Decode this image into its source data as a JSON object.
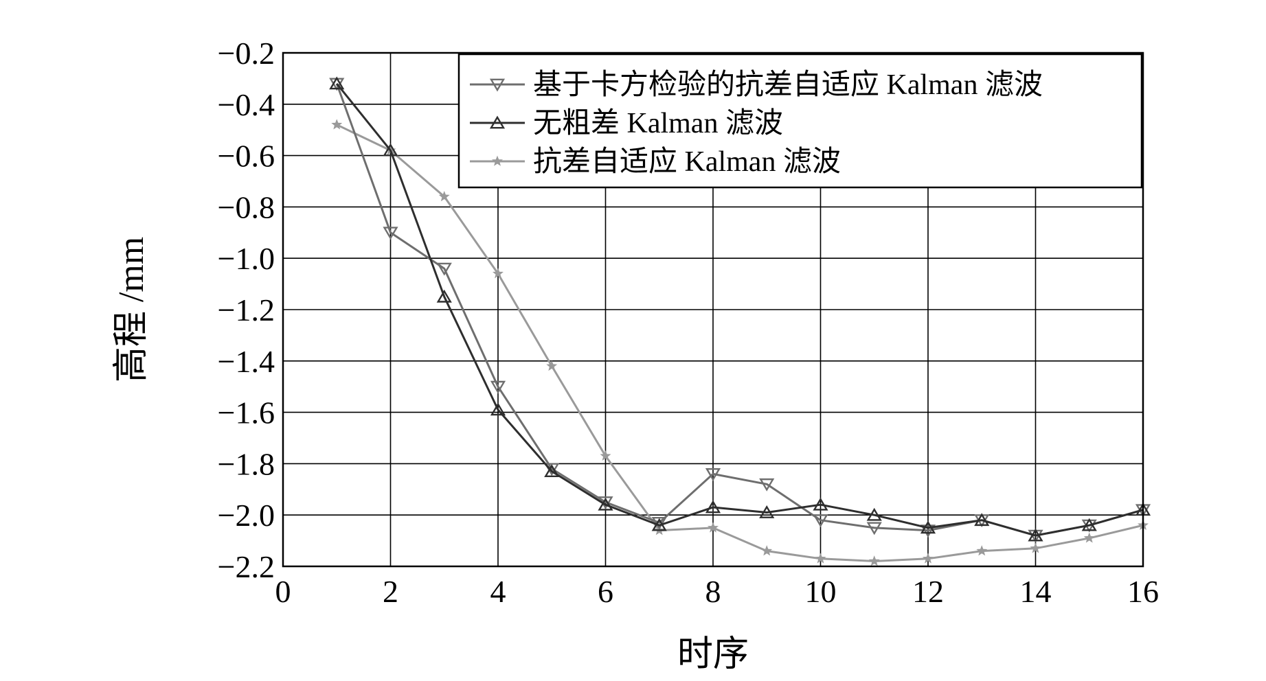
{
  "chart_data": {
    "type": "line",
    "xlabel": "时序",
    "ylabel": "高程 /mm",
    "xlim": [
      0,
      16
    ],
    "ylim": [
      -2.2,
      -0.2
    ],
    "xticks": [
      0,
      2,
      4,
      6,
      8,
      10,
      12,
      14,
      16
    ],
    "yticks": [
      -0.2,
      -0.4,
      -0.6,
      -0.8,
      -1.0,
      -1.2,
      -1.4,
      -1.6,
      -1.8,
      -2.0,
      -2.2
    ],
    "ytick_labels": [
      "−0.2",
      "−0.4",
      "−0.6",
      "−0.8",
      "−1.0",
      "−1.2",
      "−1.4",
      "−1.6",
      "−1.8",
      "−2.0",
      "−2.2"
    ],
    "grid": true,
    "legend_position": "top-right",
    "x": [
      1,
      2,
      3,
      4,
      5,
      6,
      7,
      8,
      9,
      10,
      11,
      12,
      13,
      14,
      15,
      16
    ],
    "series": [
      {
        "name": "基于卡方检验的抗差自适应 Kalman 滤波",
        "marker": "triangle-down",
        "color": "#6e6e6e",
        "values": [
          -0.32,
          -0.9,
          -1.04,
          -1.5,
          -1.82,
          -1.95,
          -2.03,
          -1.84,
          -1.88,
          -2.02,
          -2.05,
          -2.06,
          -2.02,
          -2.08,
          -2.04,
          -1.98
        ]
      },
      {
        "name": "无粗差 Kalman 滤波",
        "marker": "triangle-up",
        "color": "#2e2e2e",
        "values": [
          -0.32,
          -0.58,
          -1.15,
          -1.59,
          -1.83,
          -1.96,
          -2.04,
          -1.97,
          -1.99,
          -1.96,
          -2.0,
          -2.05,
          -2.02,
          -2.08,
          -2.04,
          -1.98
        ]
      },
      {
        "name": "抗差自适应 Kalman 滤波",
        "marker": "star",
        "color": "#9a9a9a",
        "values": [
          -0.48,
          -0.58,
          -0.76,
          -1.06,
          -1.42,
          -1.77,
          -2.06,
          -2.05,
          -2.14,
          -2.17,
          -2.18,
          -2.17,
          -2.14,
          -2.13,
          -2.09,
          -2.04
        ]
      }
    ]
  }
}
